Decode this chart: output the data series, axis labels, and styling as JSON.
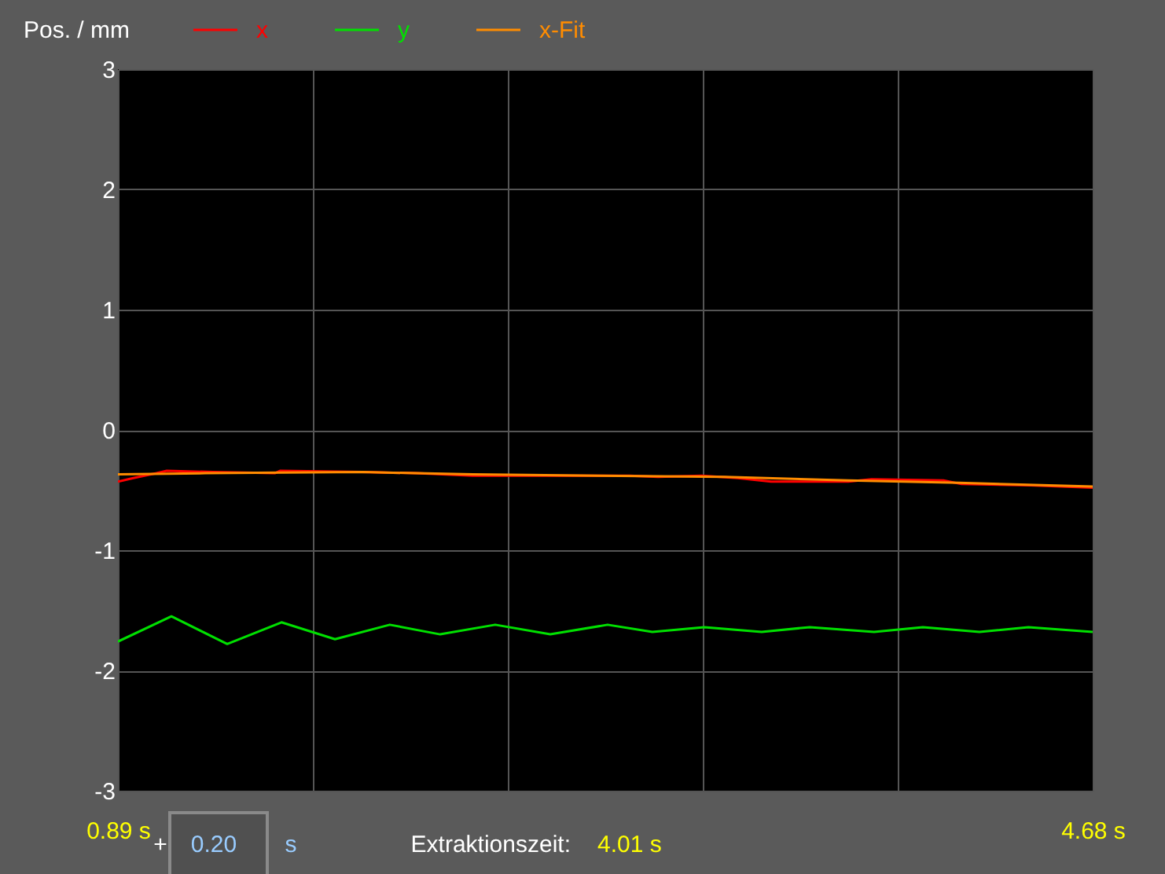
{
  "chart_data": {
    "type": "line",
    "ylabel": "Pos. / mm",
    "xlim": [
      0.89,
      4.68
    ],
    "ylim": [
      -3,
      3
    ],
    "xticks": [
      {
        "value": 0.89,
        "label": "0.89 s"
      },
      {
        "value": 1.648,
        "label": null
      },
      {
        "value": 2.406,
        "label": null
      },
      {
        "value": 3.164,
        "label": null
      },
      {
        "value": 3.922,
        "label": null
      },
      {
        "value": 4.68,
        "label": "4.68 s"
      }
    ],
    "yticks": [
      -3,
      -2,
      -1,
      0,
      1,
      2,
      3
    ],
    "grid": true,
    "legend": "top",
    "series": [
      {
        "name": "x",
        "color": "#ff0000",
        "x": [
          0.89,
          0.95,
          1.04,
          1.08,
          1.26,
          1.5,
          1.52,
          1.84,
          2.05,
          2.27,
          2.63,
          2.88,
          2.99,
          3.16,
          3.3,
          3.43,
          3.73,
          3.82,
          4.1,
          4.17,
          4.44,
          4.68
        ],
        "values": [
          -0.43,
          -0.4,
          -0.36,
          -0.34,
          -0.35,
          -0.36,
          -0.34,
          -0.35,
          -0.36,
          -0.38,
          -0.38,
          -0.38,
          -0.39,
          -0.38,
          -0.4,
          -0.43,
          -0.43,
          -0.41,
          -0.42,
          -0.45,
          -0.46,
          -0.48
        ]
      },
      {
        "name": "y",
        "color": "#00e000",
        "x": [
          0.89,
          1.098,
          1.315,
          1.526,
          1.734,
          1.947,
          2.143,
          2.357,
          2.571,
          2.794,
          2.968,
          3.17,
          3.393,
          3.58,
          3.83,
          4.02,
          4.24,
          4.43,
          4.68
        ],
        "values": [
          -1.76,
          -1.55,
          -1.78,
          -1.6,
          -1.74,
          -1.62,
          -1.7,
          -1.62,
          -1.7,
          -1.62,
          -1.68,
          -1.64,
          -1.68,
          -1.64,
          -1.68,
          -1.64,
          -1.68,
          -1.64,
          -1.68
        ]
      },
      {
        "name": "x-Fit",
        "color": "#ff8c00",
        "x": [
          0.89,
          1.23,
          1.84,
          2.05,
          2.27,
          2.76,
          3.25,
          3.73,
          4.16,
          4.68
        ],
        "values": [
          -0.37,
          -0.36,
          -0.35,
          -0.36,
          -0.37,
          -0.38,
          -0.39,
          -0.42,
          -0.44,
          -0.47
        ]
      }
    ],
    "annotations": [
      "+",
      "0.20",
      "s",
      "Extraktionszeit:",
      "4.01 s"
    ]
  }
}
